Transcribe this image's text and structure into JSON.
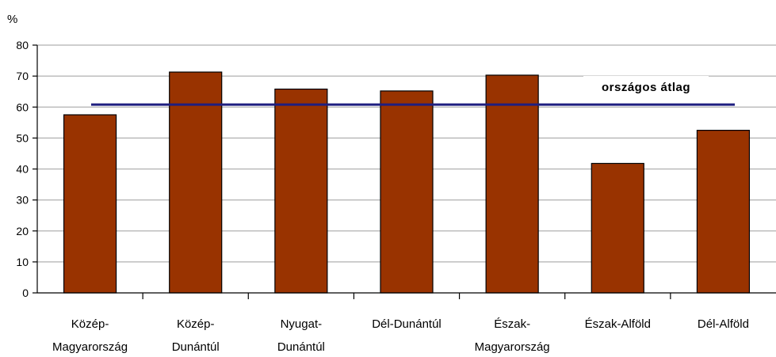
{
  "chart_data": {
    "type": "bar",
    "y_unit": "%",
    "categories": [
      [
        "Közép-",
        "Magyarország"
      ],
      [
        "Közép-",
        "Dunántúl"
      ],
      [
        "Nyugat-",
        "Dunántúl"
      ],
      [
        "Dél-Dunántúl"
      ],
      [
        "Észak-",
        "Magyarország"
      ],
      [
        "Észak-Alföld"
      ],
      [
        "Dél-Alföld"
      ]
    ],
    "values": [
      57.5,
      71.3,
      65.8,
      65.2,
      70.3,
      41.8,
      52.5
    ],
    "ylim": [
      0,
      80
    ],
    "yticks": [
      0,
      10,
      20,
      30,
      40,
      50,
      60,
      70,
      80
    ],
    "grid": true,
    "reference_line": {
      "label": "országos átlag",
      "value": 60.8
    },
    "colors": {
      "bar": "#993300",
      "bar_border": "#000000",
      "reference_line": "#1f1f80",
      "grid": "#b0b0b0"
    }
  }
}
